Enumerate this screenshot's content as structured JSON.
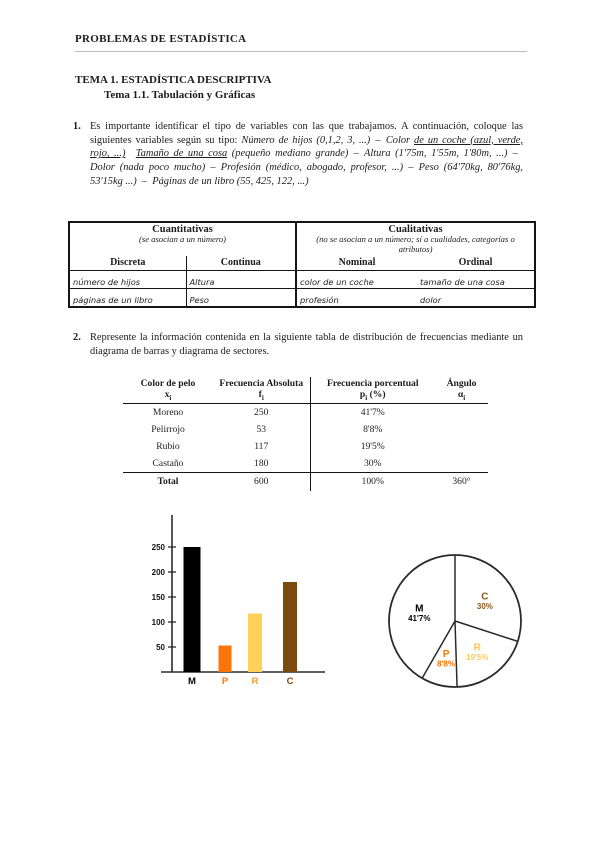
{
  "page": {
    "header": "PROBLEMAS DE ESTADÍSTICA",
    "title": "TEMA 1. ESTADÍSTICA DESCRIPTIVA",
    "subtitle": "Tema 1.1. Tabulación y Gráficas"
  },
  "problem1": {
    "number": "1.",
    "segments": [
      {
        "style": "n",
        "text": "Es importante identificar el tipo de variables con las que trabajamos. A continuación, coloque las siguientes variables según su tipo: "
      },
      {
        "style": "i",
        "text": "Número de hijos (0,1,2, 3, ...)"
      },
      {
        "style": "n",
        "text": " – "
      },
      {
        "style": "i",
        "text": "Color "
      },
      {
        "style": "iu",
        "text": "de un coche (azul, verde, rojo, ...)"
      },
      {
        "style": "n",
        "text": "  "
      },
      {
        "style": "iu",
        "text": "Tamaño de una cosa"
      },
      {
        "style": "i",
        "text": " (pequeño mediano grande)"
      },
      {
        "style": "n",
        "text": " – "
      },
      {
        "style": "i",
        "text": "Altura (1'75m, 1'55m, 1'80m, ...)"
      },
      {
        "style": "n",
        "text": " – "
      },
      {
        "style": "i",
        "text": "Dolor (nada poco mucho)"
      },
      {
        "style": "n",
        "text": " – "
      },
      {
        "style": "i",
        "text": "Profesión (médico, abogado, profesor, ...)"
      },
      {
        "style": "n",
        "text": " – "
      },
      {
        "style": "i",
        "text": "Peso (64'70kg, 80'76kg, 53'15kg ...)"
      },
      {
        "style": "n",
        "text": " – "
      },
      {
        "style": "i",
        "text": "Páginas de un libro (55, 425, 122, ...)"
      }
    ]
  },
  "variables_table": {
    "quant_title": "Cuantitativas",
    "quant_caption": "(se asocian a un número)",
    "qual_title": "Cualitativas",
    "qual_caption": "(no se asocian a un número; sí a cualidades, categorías o atributos)",
    "columns": [
      "Discreta",
      "Continua",
      "Nominal",
      "Ordinal"
    ],
    "rows": [
      [
        "número de hijos",
        "Altura",
        "color de un coche",
        "tamaño de una cosa"
      ],
      [
        "páginas de un libro",
        "Peso",
        "profesión",
        "dolor"
      ]
    ]
  },
  "problem2": {
    "number": "2.",
    "text": "Represente la información contenida en la siguiente tabla de distribución de frecuencias mediante un diagrama de barras y diagrama de sectores."
  },
  "freq_table": {
    "headers": [
      {
        "title": "Color de pelo",
        "sym": "x",
        "sub": "i",
        "suffix": ""
      },
      {
        "title": "Frecuencia Absoluta",
        "sym": "f",
        "sub": "i",
        "suffix": ""
      },
      {
        "title": "Frecuencia porcentual",
        "sym": "p",
        "sub": "i",
        "suffix": " (%)"
      },
      {
        "title": "Ángulo",
        "sym": "α",
        "sub": "i",
        "suffix": ""
      }
    ],
    "rows": [
      [
        "Moreno",
        "250",
        "41'7%",
        ""
      ],
      [
        "Pelirrojo",
        "53",
        "8'8%",
        ""
      ],
      [
        "Rubio",
        "117",
        "19'5%",
        ""
      ],
      [
        "Castaño",
        "180",
        "30%",
        ""
      ]
    ],
    "total_row": [
      "Total",
      "600",
      "100%",
      "360°"
    ]
  },
  "chart_data": [
    {
      "type": "bar",
      "title": "Diagrama de barras (frecuencias absolutas de color de pelo)",
      "categories": [
        "M",
        "P",
        "R",
        "C"
      ],
      "values": [
        250,
        53,
        117,
        180
      ],
      "bar_colors": [
        "#000000",
        "#fd7408",
        "#ffd158",
        "#7b4a11"
      ],
      "label_colors": [
        "#000000",
        "#fd7408",
        "#f59d2a",
        "#7b4a11"
      ],
      "yticks": [
        50,
        100,
        150,
        200,
        250
      ],
      "ylim": [
        0,
        265
      ],
      "xlabel": "",
      "ylabel": "",
      "grid": false
    },
    {
      "type": "pie",
      "title": "Diagrama de sectores (color de pelo)",
      "start_angle_deg": 0,
      "direction": "clockwise",
      "fill": "none",
      "slices": [
        {
          "label": "C",
          "pct_label": "30%",
          "value": 30,
          "color": "#8a5a1e"
        },
        {
          "label": "R",
          "pct_label": "19'5%",
          "value": 19.5,
          "color": "#ffc84a"
        },
        {
          "label": "P",
          "pct_label": "8'8%",
          "value": 8.8,
          "color": "#fd7408"
        },
        {
          "label": "M",
          "pct_label": "41'7%",
          "value": 41.7,
          "color": "#000000"
        }
      ]
    }
  ]
}
